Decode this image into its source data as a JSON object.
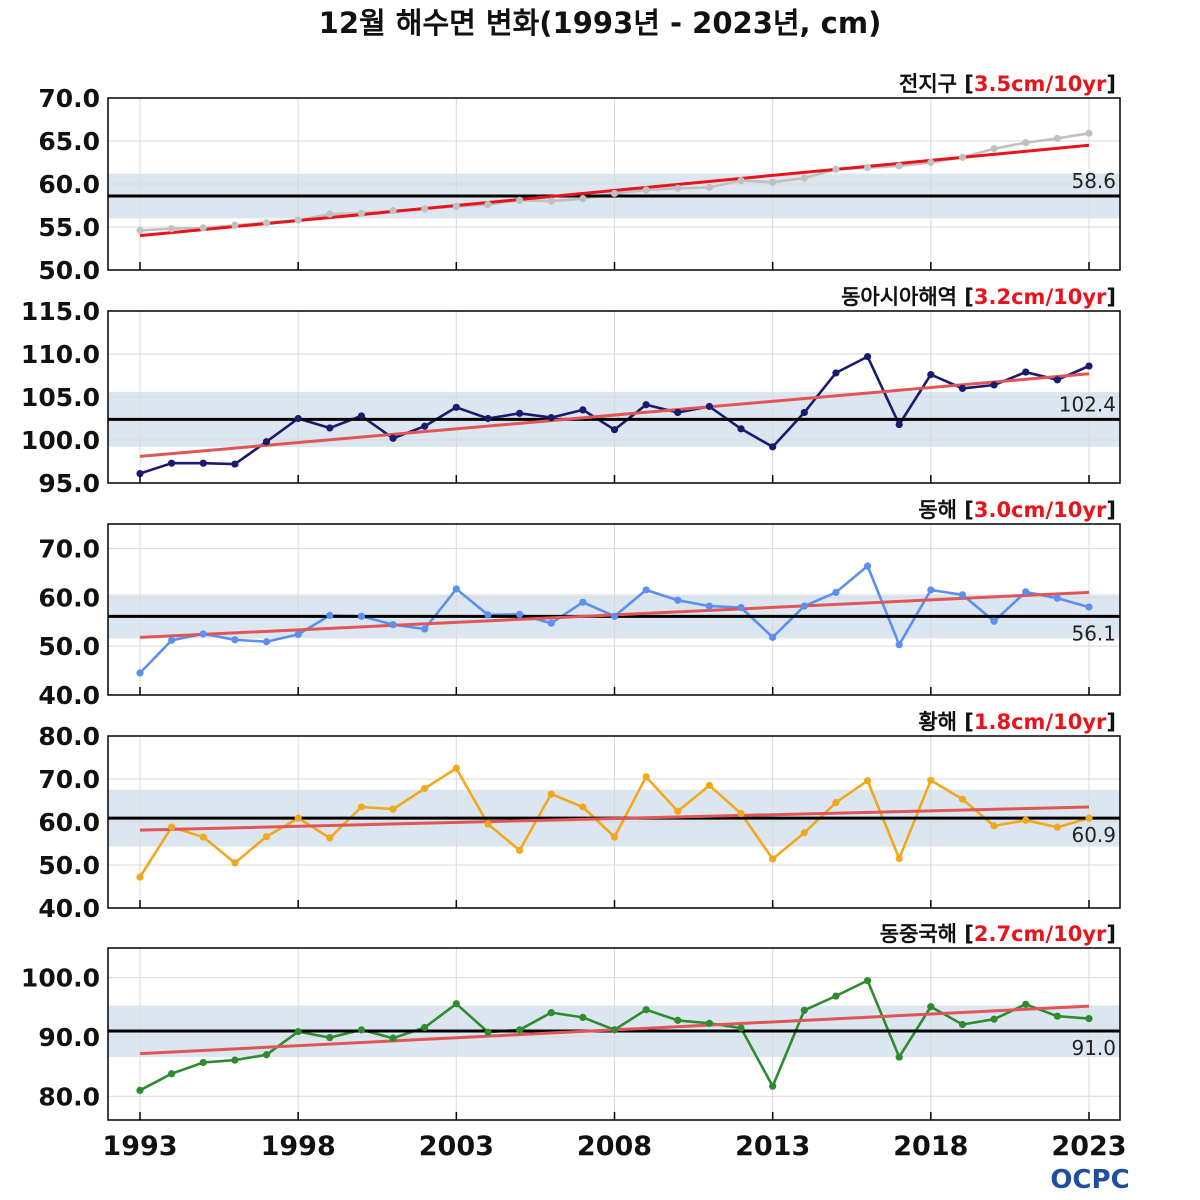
{
  "title": "12월 해수면 변화(1993년 - 2023년, cm)",
  "logo": {
    "text": "OCPC",
    "color": "#1f4e9c"
  },
  "colors": {
    "trend": "#e8141b",
    "trend_soft": "#e05555",
    "mean": "#000000",
    "band": "#dce6f0",
    "grid": "#d9d9d9"
  },
  "x_ticks": [
    "1993",
    "1998",
    "2003",
    "2008",
    "2013",
    "2018",
    "2023"
  ],
  "chart_data": [
    {
      "type": "line",
      "name": "전지구",
      "trend_label": "3.5cm/10yr",
      "color": "#c0c0c0",
      "x": [
        1993,
        1994,
        1995,
        1996,
        1997,
        1998,
        1999,
        2000,
        2001,
        2002,
        2003,
        2004,
        2005,
        2006,
        2007,
        2008,
        2009,
        2010,
        2011,
        2012,
        2013,
        2014,
        2015,
        2016,
        2017,
        2018,
        2019,
        2020,
        2021,
        2022,
        2023
      ],
      "values": [
        54.6,
        54.8,
        54.9,
        55.2,
        55.5,
        55.8,
        56.5,
        56.6,
        56.9,
        57.1,
        57.4,
        57.6,
        58.1,
        58.0,
        58.3,
        58.9,
        59.3,
        59.5,
        59.6,
        60.4,
        60.2,
        60.7,
        61.7,
        61.9,
        62.1,
        62.5,
        63.1,
        64.1,
        64.8,
        65.3,
        65.9
      ],
      "trend": [
        54.0,
        64.5
      ],
      "mean": 58.6,
      "mean_label": "58.6",
      "band": [
        56.0,
        61.2
      ],
      "ylim": [
        50,
        70
      ],
      "yticks": [
        "70.0",
        "65.0",
        "60.0",
        "55.0",
        "50.0"
      ],
      "trend_soft": false
    },
    {
      "type": "line",
      "name": "동아시아해역",
      "trend_label": "3.2cm/10yr",
      "color": "#1a1a6e",
      "x": [
        1993,
        1994,
        1995,
        1996,
        1997,
        1998,
        1999,
        2000,
        2001,
        2002,
        2003,
        2004,
        2005,
        2006,
        2007,
        2008,
        2009,
        2010,
        2011,
        2012,
        2013,
        2014,
        2015,
        2016,
        2017,
        2018,
        2019,
        2020,
        2021,
        2022,
        2023
      ],
      "values": [
        96.1,
        97.3,
        97.3,
        97.2,
        99.8,
        102.5,
        101.4,
        102.8,
        100.2,
        101.6,
        103.8,
        102.5,
        103.1,
        102.6,
        103.5,
        101.2,
        104.1,
        103.2,
        103.9,
        101.3,
        99.2,
        103.2,
        107.8,
        109.7,
        101.8,
        107.6,
        106.0,
        106.4,
        107.9,
        107.0,
        108.6
      ],
      "trend": [
        98.1,
        107.7
      ],
      "mean": 102.4,
      "mean_label": "102.4",
      "band": [
        99.2,
        105.6
      ],
      "ylim": [
        95,
        115
      ],
      "yticks": [
        "115.0",
        "110.0",
        "105.0",
        "100.0",
        "95.0"
      ],
      "trend_soft": true
    },
    {
      "type": "line",
      "name": "동해",
      "trend_label": "3.0cm/10yr",
      "color": "#5b8ff0",
      "x": [
        1993,
        1994,
        1995,
        1996,
        1997,
        1998,
        1999,
        2000,
        2001,
        2002,
        2003,
        2004,
        2005,
        2006,
        2007,
        2008,
        2009,
        2010,
        2011,
        2012,
        2013,
        2014,
        2015,
        2016,
        2017,
        2018,
        2019,
        2020,
        2021,
        2022,
        2023
      ],
      "values": [
        44.5,
        51.2,
        52.5,
        51.3,
        50.9,
        52.4,
        56.3,
        56.1,
        54.4,
        53.5,
        61.7,
        56.4,
        56.5,
        54.7,
        59.0,
        56.1,
        61.5,
        59.4,
        58.2,
        57.9,
        51.8,
        58.2,
        61.0,
        66.4,
        50.3,
        61.5,
        60.5,
        55.1,
        61.1,
        59.8,
        58.0
      ],
      "trend": [
        51.8,
        61.0
      ],
      "mean": 56.1,
      "mean_label": "56.1",
      "band": [
        51.6,
        60.6
      ],
      "ylim": [
        40,
        75
      ],
      "yticks": [
        "70.0",
        "60.0",
        "50.0",
        "40.0"
      ],
      "trend_soft": true
    },
    {
      "type": "line",
      "name": "황해",
      "trend_label": "1.8cm/10yr",
      "color": "#f2a81d",
      "x": [
        1993,
        1994,
        1995,
        1996,
        1997,
        1998,
        1999,
        2000,
        2001,
        2002,
        2003,
        2004,
        2005,
        2006,
        2007,
        2008,
        2009,
        2010,
        2011,
        2012,
        2013,
        2014,
        2015,
        2016,
        2017,
        2018,
        2019,
        2020,
        2021,
        2022,
        2023
      ],
      "values": [
        47.2,
        58.8,
        56.5,
        50.5,
        56.6,
        60.9,
        56.3,
        63.5,
        63.0,
        67.8,
        72.5,
        59.5,
        53.4,
        66.5,
        63.5,
        56.5,
        70.5,
        62.5,
        68.5,
        62.0,
        51.4,
        57.5,
        64.5,
        69.6,
        51.5,
        69.7,
        65.3,
        59.1,
        60.4,
        58.8,
        60.9
      ],
      "trend": [
        58.1,
        63.5
      ],
      "mean": 60.9,
      "mean_label": "60.9",
      "band": [
        54.3,
        67.5
      ],
      "ylim": [
        40,
        80
      ],
      "yticks": [
        "80.0",
        "70.0",
        "60.0",
        "50.0",
        "40.0"
      ],
      "trend_soft": true
    },
    {
      "type": "line",
      "name": "동중국해",
      "trend_label": "2.7cm/10yr",
      "color": "#2e8b2e",
      "x": [
        1993,
        1994,
        1995,
        1996,
        1997,
        1998,
        1999,
        2000,
        2001,
        2002,
        2003,
        2004,
        2005,
        2006,
        2007,
        2008,
        2009,
        2010,
        2011,
        2012,
        2013,
        2014,
        2015,
        2016,
        2017,
        2018,
        2019,
        2020,
        2021,
        2022,
        2023
      ],
      "values": [
        81.0,
        83.8,
        85.7,
        86.1,
        87.0,
        90.9,
        89.9,
        91.2,
        89.8,
        91.6,
        95.6,
        90.8,
        91.2,
        94.1,
        93.3,
        91.2,
        94.6,
        92.8,
        92.3,
        91.5,
        81.7,
        94.5,
        96.9,
        99.5,
        86.6,
        95.1,
        92.1,
        93.0,
        95.5,
        93.5,
        93.1
      ],
      "trend": [
        87.2,
        95.2
      ],
      "mean": 91.0,
      "mean_label": "91.0",
      "band": [
        86.6,
        95.3
      ],
      "ylim": [
        76,
        105
      ],
      "yticks": [
        "100.0",
        "90.0",
        "80.0"
      ],
      "trend_soft": true
    }
  ]
}
